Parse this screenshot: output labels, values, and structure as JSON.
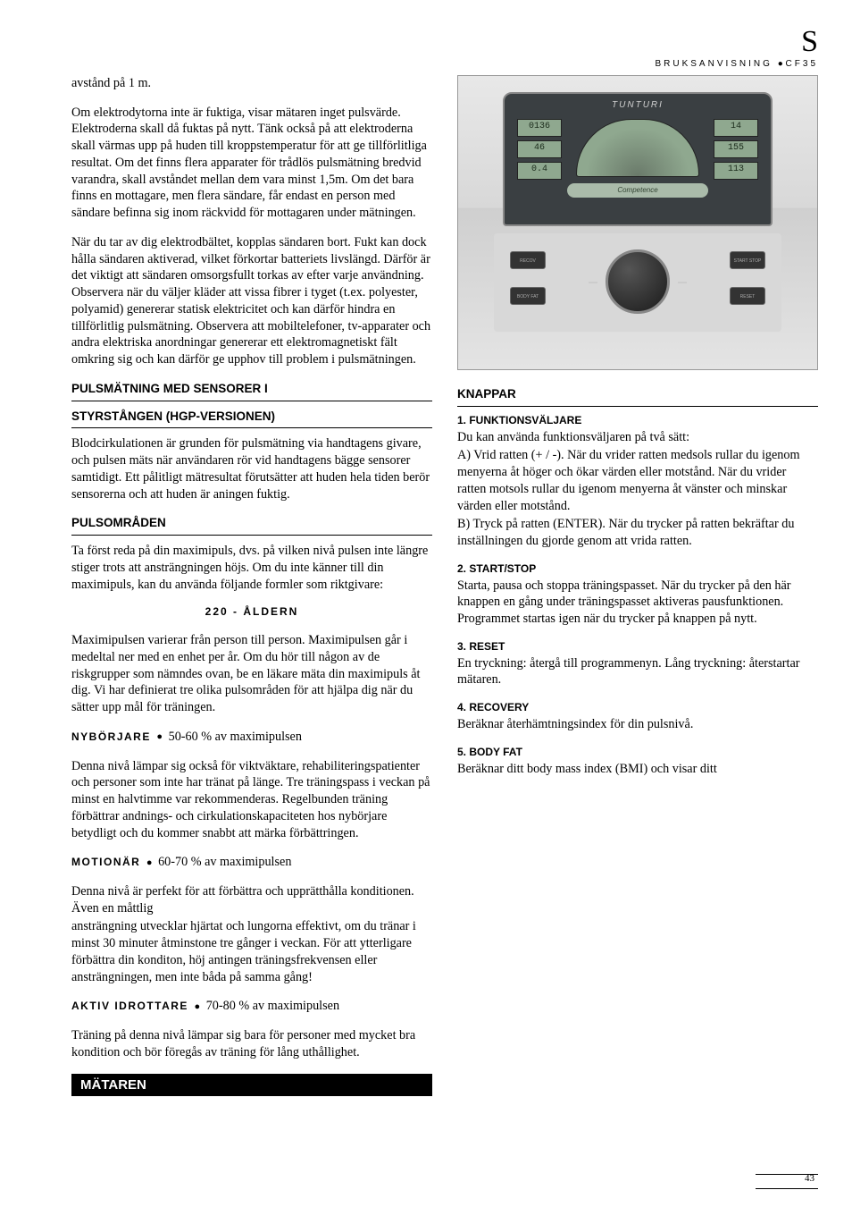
{
  "page": {
    "letter": "S",
    "header_left": "BRUKSANVISNING",
    "header_right": "CF35",
    "number": "43"
  },
  "col1": {
    "p1": "avstånd på 1 m.",
    "p2": "Om elektrodytorna inte är fuktiga, visar mätaren inget pulsvärde. Elektroderna skall då fuktas på nytt. Tänk också på att elektroderna skall värmas upp på huden till kroppstemperatur för att ge tillförlitliga resultat. Om det finns flera apparater för trådlös pulsmätning bredvid varandra, skall avståndet mellan dem vara minst 1,5m. Om det bara finns en mottagare, men flera sändare, får endast en person med sändare befinna sig inom räckvidd för mottagaren under mätningen.",
    "p3": "När du tar  av dig elektrodbältet, kopplas sändaren bort. Fukt kan dock hålla sändaren aktiverad, vilket förkortar batteriets livslängd. Därför är det viktigt att sändaren omsorgsfullt torkas av efter varje användning. Observera när du väljer kläder att vissa fibrer i tyget (t.ex. polyester, polyamid) genererar statisk elektricitet och kan därför hindra en tillförlitlig pulsmätning. Observera att mobiltelefoner, tv-apparater och andra elektriska anordningar genererar ett elektromagnetiskt fält omkring sig och kan därför ge upphov till problem i pulsmätningen.",
    "h1": "PULSMÄTNING MED SENSORER I",
    "h2": "STYRSTÅNGEN (HGP-VERSIONEN)",
    "p4": "Blodcirkulationen är grunden för pulsmätning via handtagens givare, och pulsen mäts när användaren rör vid handtagens bägge sensorer samtidigt. Ett pålitligt mätresultat förutsätter att huden hela tiden berör sensorerna och att huden är aningen fuktig.",
    "h3": "PULSOMRÅDEN",
    "p5": "Ta först reda på din maximipuls, dvs. på vilken nivå pulsen inte längre stiger trots att ansträngningen höjs. Om du inte känner till din maximipuls, kan du använda följande formler som riktgivare:",
    "formula": "220 - ÅLDERN",
    "p6": "Maximipulsen varierar från person till person. Maximipulsen går i medeltal ner med en enhet per år. Om du hör till någon av de riskgrupper som nämndes ovan, be en läkare mäta din maximipuls åt dig. Vi har definierat tre olika pulsområden för att hjälpa dig när du sätter upp mål för träningen.",
    "lvl1_label": "NYBÖRJARE",
    "lvl1_val": "50-60 % av maximipulsen",
    "p7": "Denna nivå lämpar sig också för viktväktare, rehabiliteringspatienter och personer som inte har tränat på länge. Tre träningspass i veckan på minst en halvtimme var rekommenderas. Regelbunden träning förbättrar andnings- och cirkulationskapaciteten hos nybörjare betydligt och du kommer snabbt att märka förbättringen.",
    "lvl2_label": "MOTIONÄR",
    "lvl2_val": "60-70 % av maximipulsen",
    "p8": "Denna nivå är perfekt för att förbättra och upprätthålla konditionen. Även en måttlig"
  },
  "col2": {
    "p1": "ansträngning utvecklar hjärtat och lungorna effektivt, om du tränar i minst 30 minuter åtminstone tre gånger i veckan. För att ytterligare förbättra din konditon, höj antingen träningsfrekvensen eller ansträngningen, men inte båda på samma gång!",
    "lvl3_label": "AKTIV IDROTTARE",
    "lvl3_val": "70-80 % av maximipulsen",
    "p2": "Träning på denna nivå lämpar sig bara för personer med mycket bra kondition och bör föregås av träning för lång uthållighet.",
    "section": "MÄTAREN",
    "console": {
      "brand": "TUNTURI",
      "lcd": {
        "v1": "0136",
        "v2": "46",
        "v3": "0.4",
        "v4": "14",
        "v5": "155",
        "v6": "113"
      },
      "strip": "Competence",
      "buttons": {
        "b1": "RECOV",
        "b2": "BODY FAT",
        "b3": "START STOP",
        "b4": "RESET"
      }
    },
    "h_knappar": "KNAPPAR",
    "k1_h": "1. FUNKTIONSVÄLJARE",
    "k1_a": "Du kan använda funktionsväljaren på två sätt:",
    "k1_b": "A) Vrid ratten (+ / -). När du vrider ratten medsols rullar du igenom menyerna åt höger och ökar värden eller motstånd. När du vrider ratten motsols rullar du igenom menyerna åt vänster och minskar värden eller motstånd.",
    "k1_c": "B) Tryck på ratten (ENTER). När du trycker på ratten bekräftar du inställningen du gjorde genom att vrida ratten.",
    "k2_h": "2. START/STOP",
    "k2_p": "Starta, pausa och stoppa träningspasset. När du trycker på den här knappen en gång under träningspasset aktiveras pausfunktionen. Programmet startas igen när du trycker på knappen på nytt.",
    "k3_h": "3. RESET",
    "k3_p": "En tryckning: återgå till programmenyn. Lång tryckning: återstartar mätaren.",
    "k4_h": "4. RECOVERY",
    "k4_p": "Beräknar återhämtningsindex för din pulsnivå.",
    "k5_h": "5. BODY FAT",
    "k5_p": "Beräknar ditt body mass index (BMI) och visar ditt"
  }
}
